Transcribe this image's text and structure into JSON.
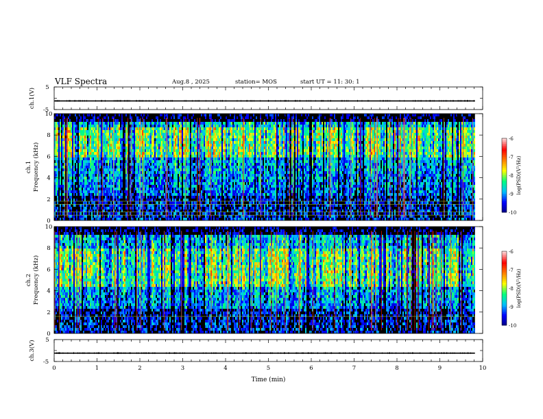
{
  "header": {
    "title": "VLF Spectra",
    "date": "Aug.8  , 2025",
    "station": "station= MOS",
    "start_ut": "start  UT  =   11: 30: 1"
  },
  "chart_data": [
    {
      "type": "line",
      "name": "ch1-voltage",
      "ylabel": "ch.1(V)",
      "ylim": [
        -5,
        5
      ],
      "yticks": [
        "5",
        "-5"
      ],
      "x_range_min": [
        0,
        9.82
      ],
      "level": -1.2,
      "color": "#000000"
    },
    {
      "type": "heatmap",
      "name": "ch1-spectrogram",
      "ylabel": "ch.1\nFrequency (kHz)",
      "ylim": [
        0,
        10
      ],
      "yticks": [
        "0",
        "2",
        "4",
        "6",
        "8",
        "10"
      ],
      "x_range_min": [
        0,
        9.82
      ],
      "band_khz": [
        6.0,
        8.8
      ],
      "reference_lines_khz": [
        0.5,
        0.8,
        1.5,
        1.8
      ],
      "colorbar": {
        "label": "log(PSD)(V²/Hz)",
        "range": [
          -10,
          -6
        ],
        "ticks": [
          "-6",
          "-7",
          "-8",
          "-9",
          "-10"
        ],
        "colors": [
          "#000080",
          "#0000ff",
          "#00bfff",
          "#00ff80",
          "#ffff00",
          "#ff8000",
          "#ff0000",
          "#ffd0d0"
        ]
      }
    },
    {
      "type": "heatmap",
      "name": "ch2-spectrogram",
      "ylabel": "ch.2\nFrequency (kHz)",
      "ylim": [
        0,
        10
      ],
      "yticks": [
        "0",
        "2",
        "4",
        "6",
        "8",
        "10"
      ],
      "x_range_min": [
        0,
        9.82
      ],
      "band_khz": [
        4.5,
        8.0
      ],
      "reference_lines_khz": [
        1.6
      ],
      "colorbar": {
        "label": "log(PSD)(V²/Hz)",
        "range": [
          -10,
          -6
        ],
        "ticks": [
          "-6",
          "-7",
          "-8",
          "-9",
          "-10"
        ],
        "colors": [
          "#000080",
          "#0000ff",
          "#00bfff",
          "#00ff80",
          "#ffff00",
          "#ff8000",
          "#ff0000",
          "#ffd0d0"
        ]
      }
    },
    {
      "type": "line",
      "name": "ch3-voltage",
      "ylabel": "ch.3(V)",
      "ylim": [
        -5,
        5
      ],
      "yticks": [
        "5",
        "-5"
      ],
      "x_range_min": [
        0,
        9.82
      ],
      "level": -1.2,
      "color": "#000000"
    }
  ],
  "x_axis": {
    "label": "Time  (min)",
    "range": [
      0,
      10
    ],
    "ticks": [
      "0",
      "1",
      "2",
      "3",
      "4",
      "5",
      "6",
      "7",
      "8",
      "9",
      "10"
    ]
  }
}
